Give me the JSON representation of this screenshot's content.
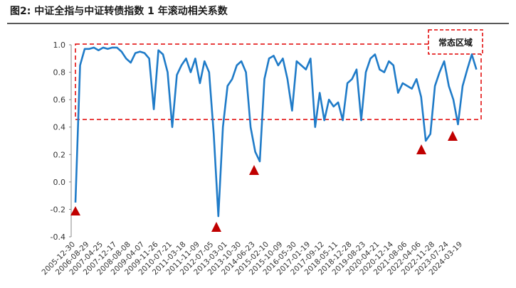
{
  "chart_data": {
    "type": "line",
    "title": "图2: 中证全指与中证转债指数 1 年滚动相关系数",
    "annotation": "常态区域",
    "categories": [
      "2005-12-30",
      null,
      null,
      "2006-08-29",
      null,
      null,
      "2007-04-25",
      null,
      null,
      "2007-12-17",
      null,
      null,
      "2008-08-08",
      null,
      null,
      "2009-04-07",
      null,
      null,
      "2009-11-26",
      null,
      null,
      "2010-07-21",
      null,
      null,
      "2011-03-18",
      null,
      null,
      "2011-11-09",
      null,
      null,
      "2012-07-05",
      null,
      null,
      "2013-03-01",
      null,
      null,
      "2013-10-30",
      null,
      null,
      "2014-06-23",
      null,
      null,
      "2015-02-10",
      null,
      null,
      "2015-10-09",
      null,
      null,
      "2016-05-30",
      null,
      null,
      "2017-01-19",
      null,
      null,
      "2017-09-12",
      null,
      null,
      "2018-05-11",
      null,
      null,
      "2018-12-28",
      null,
      null,
      "2019-08-23",
      null,
      null,
      "2020-04-21",
      null,
      null,
      "2020-12-14",
      null,
      null,
      "2021-08-06",
      null,
      null,
      "2022-04-06",
      null,
      null,
      "2022-11-28",
      null,
      null,
      "2023-07-24",
      null,
      null,
      "2024-03-19",
      null,
      null,
      null
    ],
    "series": [
      {
        "name": "1年滚动相关系数",
        "color": "#1f7bc8",
        "values": [
          -0.15,
          0.85,
          0.97,
          0.97,
          0.98,
          0.96,
          0.98,
          0.97,
          0.98,
          0.98,
          0.95,
          0.9,
          0.87,
          0.94,
          0.95,
          0.94,
          0.9,
          0.53,
          0.96,
          0.93,
          0.8,
          0.4,
          0.78,
          0.85,
          0.9,
          0.8,
          0.9,
          0.72,
          0.88,
          0.8,
          0.35,
          -0.25,
          0.4,
          0.7,
          0.75,
          0.85,
          0.88,
          0.8,
          0.4,
          0.22,
          0.15,
          0.75,
          0.9,
          0.92,
          0.85,
          0.9,
          0.75,
          0.52,
          0.88,
          0.85,
          0.82,
          0.9,
          0.4,
          0.65,
          0.45,
          0.6,
          0.55,
          0.58,
          0.45,
          0.72,
          0.75,
          0.82,
          0.45,
          0.8,
          0.9,
          0.93,
          0.82,
          0.8,
          0.88,
          0.85,
          0.65,
          0.72,
          0.7,
          0.68,
          0.75,
          0.62,
          0.3,
          0.35,
          0.7,
          0.8,
          0.88,
          0.7,
          0.6,
          0.42,
          0.7,
          0.82,
          0.93,
          0.82
        ]
      }
    ],
    "ylim": [
      -0.4,
      1.0
    ],
    "yticks": [
      {
        "value": 1.0,
        "label": "1.0"
      },
      0.8,
      0.6,
      0.4,
      0.2,
      {
        "value": 0.0,
        "label": "0.0"
      },
      -0.2,
      -0.4
    ],
    "grid": false
  }
}
